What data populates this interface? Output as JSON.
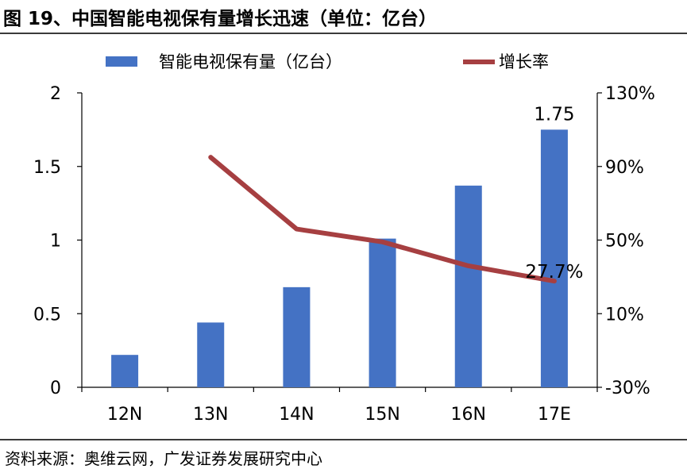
{
  "figure": {
    "title": "图 19、中国智能电视保有量增长迅速（单位：亿台）",
    "source_label": "资料来源：",
    "source_text": "奥维云网，广发证券发展研究中心"
  },
  "chart_data": {
    "type": "bar",
    "categories": [
      "12N",
      "13N",
      "14N",
      "15N",
      "16N",
      "17E"
    ],
    "series": [
      {
        "name": "智能电视保有量（亿台）",
        "type": "bar",
        "axis": "left",
        "color": "#4472C4",
        "values": [
          0.22,
          0.44,
          0.68,
          1.01,
          1.37,
          1.75
        ]
      },
      {
        "name": "增长率",
        "type": "line",
        "axis": "right",
        "color": "#A63F41",
        "values": [
          null,
          0.95,
          0.56,
          0.49,
          0.36,
          0.277
        ]
      }
    ],
    "y_left": {
      "ylim": [
        0,
        2
      ],
      "ticks": [
        "0",
        "0.5",
        "1",
        "1.5",
        "2"
      ],
      "tick_values": [
        0,
        0.5,
        1,
        1.5,
        2
      ]
    },
    "y_right": {
      "ylim": [
        -0.3,
        1.3
      ],
      "ticks": [
        "-30%",
        "10%",
        "50%",
        "90%",
        "130%"
      ],
      "tick_values": [
        -0.3,
        0.1,
        0.5,
        0.9,
        1.3
      ]
    },
    "annotations": [
      {
        "series": 0,
        "index": 5,
        "text": "1.75"
      },
      {
        "series": 1,
        "index": 5,
        "text": "27.7%"
      }
    ],
    "legend_position": "top",
    "grid": false,
    "xlabel": "",
    "ylabel": ""
  }
}
